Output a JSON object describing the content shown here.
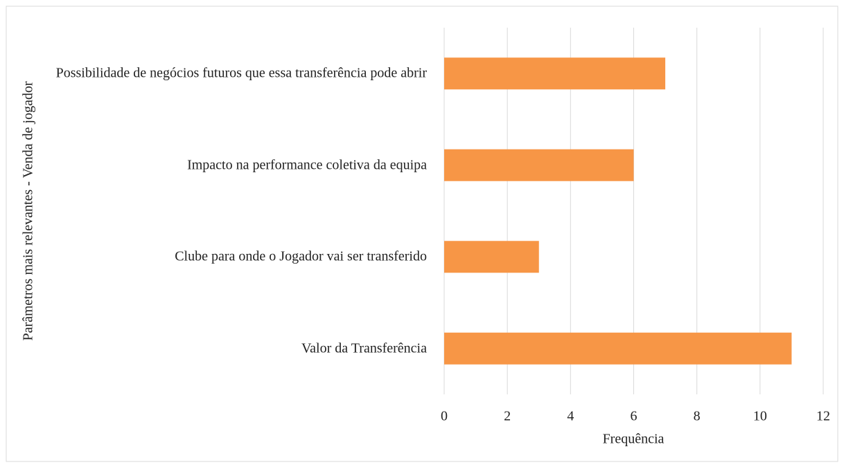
{
  "chart_data": {
    "type": "bar",
    "orientation": "horizontal",
    "y_axis_label": "Parâmetros mais relevantes - Venda de jogador",
    "x_axis_label": "Frequência",
    "categories": [
      "Possibilidade de negócios futuros que essa transferência pode abrir",
      "Impacto na performance coletiva da equipa",
      "Clube para onde o Jogador vai ser transferido",
      "Valor da Transferência"
    ],
    "values": [
      7,
      6,
      3,
      11
    ],
    "color": "#f79646",
    "xlim": [
      0,
      12
    ],
    "xticks": [
      0,
      2,
      4,
      6,
      8,
      10,
      12
    ],
    "grid": true
  }
}
